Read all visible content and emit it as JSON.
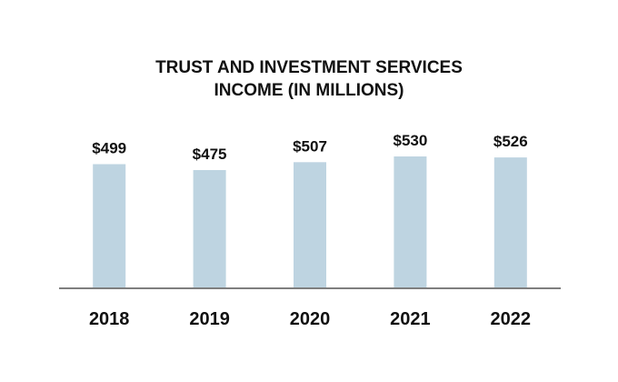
{
  "chart_data": {
    "type": "bar",
    "title_lines": [
      "TRUST AND INVESTMENT SERVICES",
      "INCOME (IN MILLIONS)"
    ],
    "categories": [
      "2018",
      "2019",
      "2020",
      "2021",
      "2022"
    ],
    "values": [
      499,
      475,
      507,
      530,
      526
    ],
    "value_labels": [
      "$499",
      "$475",
      "$507",
      "$530",
      "$526"
    ],
    "xlabel": "",
    "ylabel": "",
    "ylim": [
      0,
      600
    ],
    "grid": false,
    "legend": "none",
    "colors": {
      "bar": "#bed4e1",
      "axis": "#7f7f7f",
      "text": "#111111"
    }
  }
}
